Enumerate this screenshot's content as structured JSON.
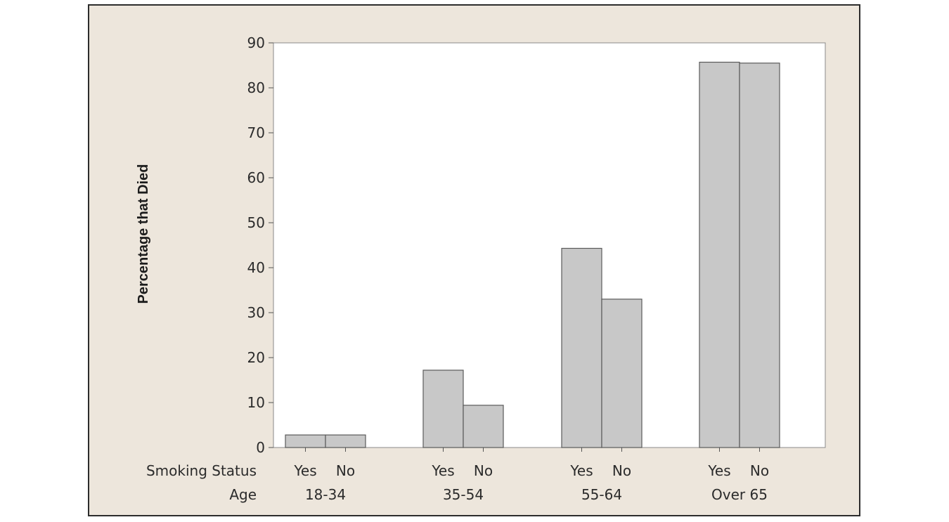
{
  "chart_data": {
    "type": "bar",
    "ylabel": "Percentage that Died",
    "ylim": [
      0,
      90
    ],
    "yticks": [
      0,
      10,
      20,
      30,
      40,
      50,
      60,
      70,
      80,
      90
    ],
    "row_labels": {
      "smoking": "Smoking Status",
      "age": "Age"
    },
    "groups": [
      {
        "age": "18-34",
        "bars": [
          {
            "smoking": "Yes",
            "value": 2.8
          },
          {
            "smoking": "No",
            "value": 2.8
          }
        ]
      },
      {
        "age": "35-54",
        "bars": [
          {
            "smoking": "Yes",
            "value": 17.2
          },
          {
            "smoking": "No",
            "value": 9.4
          }
        ]
      },
      {
        "age": "55-64",
        "bars": [
          {
            "smoking": "Yes",
            "value": 44.3
          },
          {
            "smoking": "No",
            "value": 33.0
          }
        ]
      },
      {
        "age": "Over 65",
        "bars": [
          {
            "smoking": "Yes",
            "value": 85.7
          },
          {
            "smoking": "No",
            "value": 85.5
          }
        ]
      }
    ],
    "grid": false,
    "legend": "none"
  },
  "colors": {
    "bar_fill": "#c8c8c8",
    "bar_stroke": "#5a5a5a",
    "frame_bg": "#ede6dc",
    "plot_bg": "#ffffff"
  }
}
